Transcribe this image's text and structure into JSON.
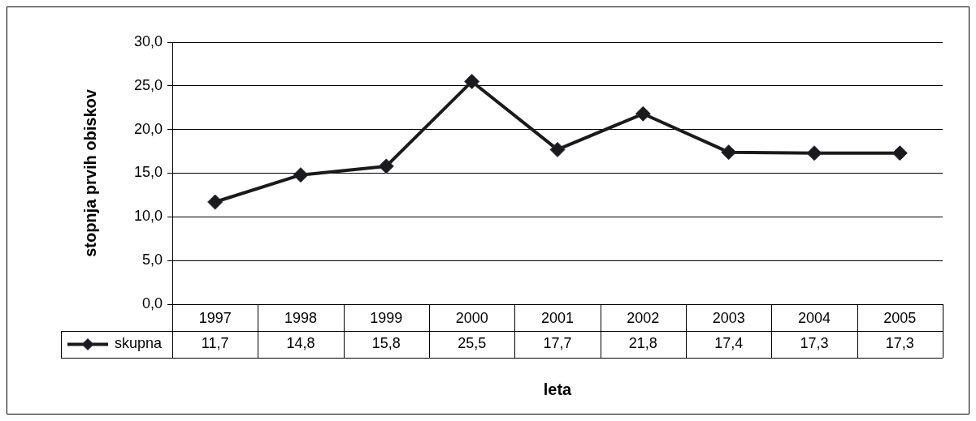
{
  "chart_data": {
    "type": "line",
    "xlabel": "leta",
    "ylabel": "stopnja prvih obiskov",
    "categories": [
      "1997",
      "1998",
      "1999",
      "2000",
      "2001",
      "2002",
      "2003",
      "2004",
      "2005"
    ],
    "series": [
      {
        "name": "skupna",
        "color": "#1a1a1a",
        "values": [
          11.7,
          14.8,
          15.8,
          25.5,
          17.7,
          21.8,
          17.4,
          17.3,
          17.3
        ],
        "value_labels": [
          "11,7",
          "14,8",
          "15,8",
          "25,5",
          "17,7",
          "21,8",
          "17,4",
          "17,3",
          "17,3"
        ]
      }
    ],
    "ylim": [
      0,
      30
    ],
    "yticks": [
      {
        "value": 0,
        "label": "0,0"
      },
      {
        "value": 5,
        "label": "5,0"
      },
      {
        "value": 10,
        "label": "10,0"
      },
      {
        "value": 15,
        "label": "15,0"
      },
      {
        "value": 20,
        "label": "20,0"
      },
      {
        "value": 25,
        "label": "25,0"
      },
      {
        "value": 30,
        "label": "30,0"
      }
    ],
    "grid": "y",
    "legend": "bottom left",
    "marker": "diamond",
    "line_style": "solid"
  }
}
